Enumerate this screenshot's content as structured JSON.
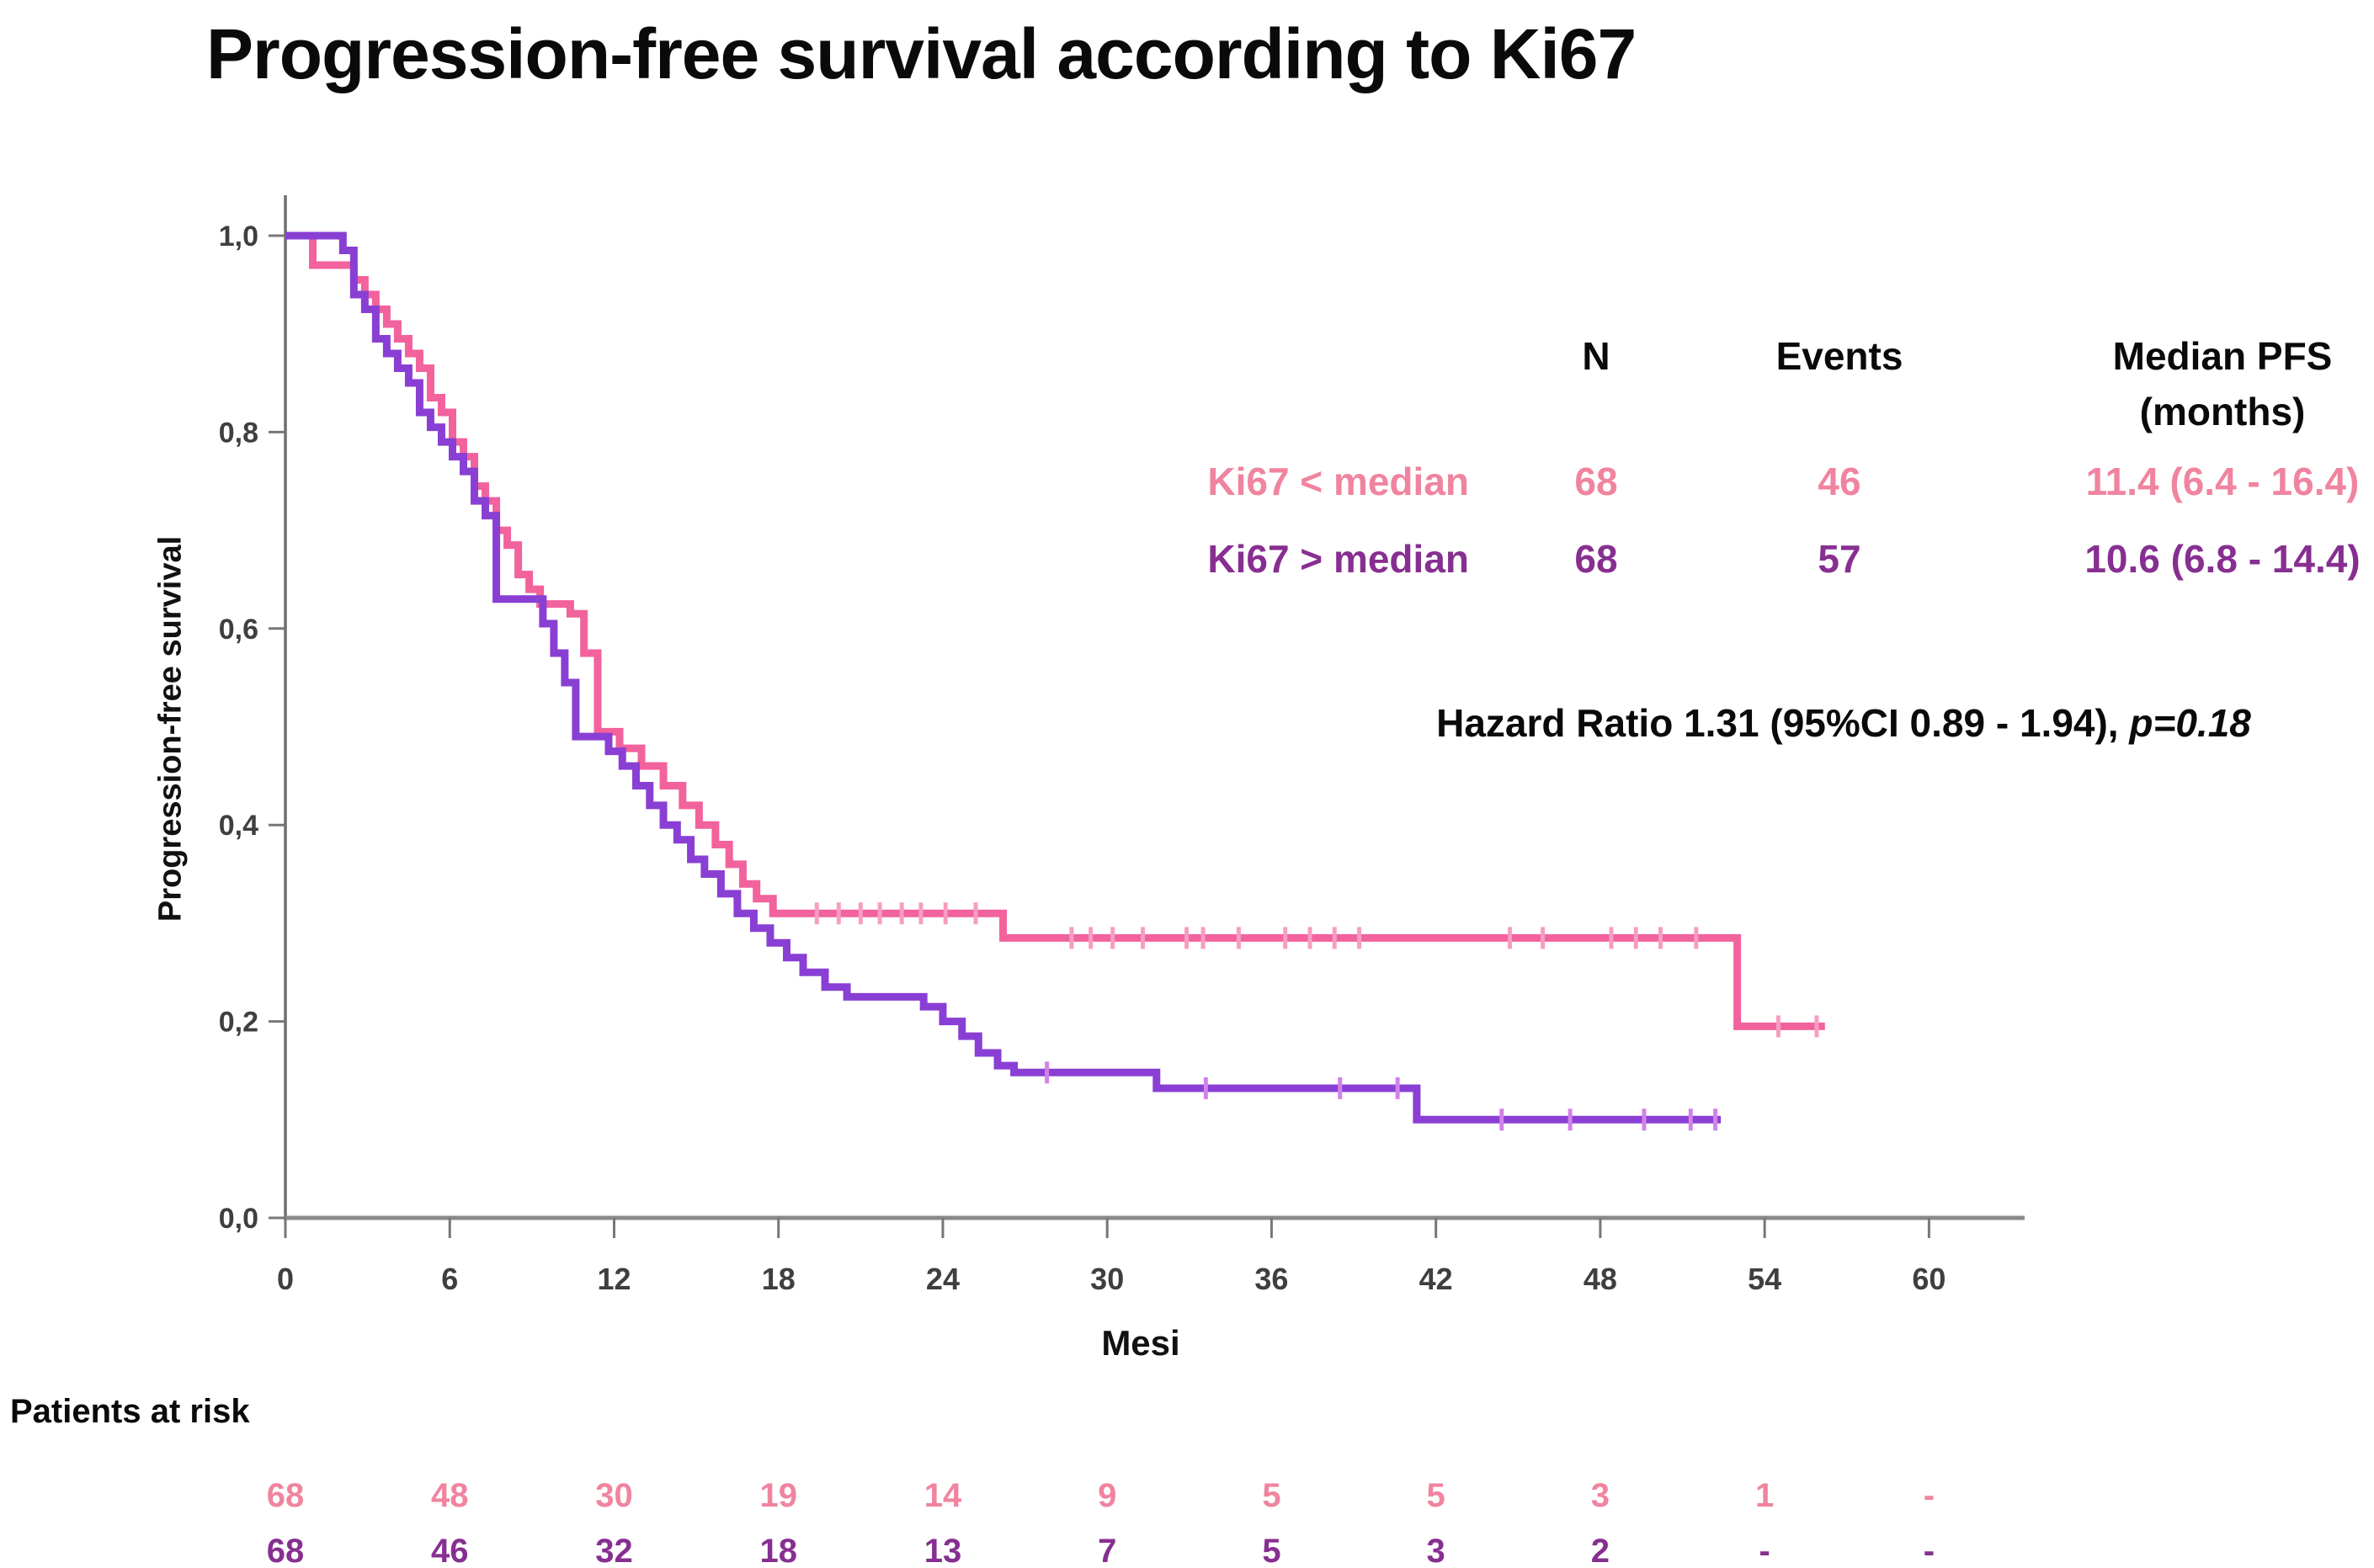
{
  "title": "Progression-free survival according to Ki67",
  "axes": {
    "x_label": "Mesi",
    "y_label": "Progression-free survival"
  },
  "colors": {
    "pink_curve": "#f2629c",
    "pink_text": "#f0849f",
    "pink_censor": "#f79ec0",
    "purple_curve": "#8a3fd4",
    "purple_text": "#872f91",
    "purple_censor": "#d183e8",
    "axis": "#8a8a8a",
    "tick_label": "#3f3f3f"
  },
  "legend_table": {
    "col_headers": {
      "n": "N",
      "events": "Events",
      "median_line1": "Median PFS",
      "median_line2": "(months)"
    },
    "rows": [
      {
        "label": "Ki67 < median",
        "n": "68",
        "events": "46",
        "median": "11.4 (6.4 - 16.4)"
      },
      {
        "label": "Ki67 > median",
        "n": "68",
        "events": "57",
        "median": "10.6 (6.8 - 14.4)"
      }
    ]
  },
  "hazard": {
    "text": "Hazard Ratio 1.31 (95%CI 0.89 - 1.94), ",
    "p": "p=0.18"
  },
  "patients_at_risk": {
    "label": "Patients at risk",
    "rows": [
      {
        "name": "Ki67 < median",
        "values": [
          "68",
          "48",
          "30",
          "19",
          "14",
          "9",
          "5",
          "5",
          "3",
          "1",
          "-"
        ]
      },
      {
        "name": "Ki67 > median",
        "values": [
          "68",
          "46",
          "32",
          "18",
          "13",
          "7",
          "5",
          "3",
          "2",
          "-",
          "-"
        ]
      }
    ]
  },
  "chart_data": {
    "type": "line",
    "subtype": "kaplan-meier-step",
    "title": "Progression-free survival according to Ki67",
    "xlabel": "Mesi",
    "ylabel": "Progression-free survival",
    "xlim": [
      0,
      63
    ],
    "ylim": [
      0.0,
      1.0
    ],
    "grid": false,
    "x_ticks": [
      {
        "v": 0,
        "label": "0"
      },
      {
        "v": 6,
        "label": "6"
      },
      {
        "v": 12,
        "label": "12"
      },
      {
        "v": 18,
        "label": "18"
      },
      {
        "v": 24,
        "label": "24"
      },
      {
        "v": 30,
        "label": "30"
      },
      {
        "v": 36,
        "label": "36"
      },
      {
        "v": 42,
        "label": "42"
      },
      {
        "v": 48,
        "label": "48"
      },
      {
        "v": 54,
        "label": "54"
      },
      {
        "v": 60,
        "label": "60"
      }
    ],
    "y_ticks": [
      {
        "v": 0.0,
        "label": "0,0"
      },
      {
        "v": 0.2,
        "label": "0,2"
      },
      {
        "v": 0.4,
        "label": "0,4"
      },
      {
        "v": 0.6,
        "label": "0,6"
      },
      {
        "v": 0.8,
        "label": "0,8"
      },
      {
        "v": 1.0,
        "label": "1,0"
      }
    ],
    "series": [
      {
        "name": "Ki67 < median",
        "n": 68,
        "events": 46,
        "median_pfs": "11.4 (6.4 - 16.4)",
        "color": "#f2629c",
        "censor_color": "#f79ec0",
        "steps": [
          [
            0,
            1.0
          ],
          [
            1.0,
            0.97
          ],
          [
            2.5,
            0.955
          ],
          [
            2.9,
            0.94
          ],
          [
            3.3,
            0.925
          ],
          [
            3.7,
            0.91
          ],
          [
            4.1,
            0.895
          ],
          [
            4.5,
            0.88
          ],
          [
            4.9,
            0.865
          ],
          [
            5.3,
            0.835
          ],
          [
            5.7,
            0.82
          ],
          [
            6.1,
            0.79
          ],
          [
            6.5,
            0.775
          ],
          [
            6.9,
            0.745
          ],
          [
            7.3,
            0.73
          ],
          [
            7.7,
            0.7
          ],
          [
            8.1,
            0.685
          ],
          [
            8.5,
            0.655
          ],
          [
            8.9,
            0.64
          ],
          [
            9.3,
            0.625
          ],
          [
            10.4,
            0.615
          ],
          [
            10.9,
            0.575
          ],
          [
            11.4,
            0.495
          ],
          [
            12.2,
            0.478
          ],
          [
            13.0,
            0.46
          ],
          [
            13.8,
            0.44
          ],
          [
            14.5,
            0.42
          ],
          [
            15.1,
            0.4
          ],
          [
            15.7,
            0.38
          ],
          [
            16.2,
            0.36
          ],
          [
            16.7,
            0.34
          ],
          [
            17.2,
            0.325
          ],
          [
            17.8,
            0.31
          ],
          [
            26.2,
            0.285
          ],
          [
            53.0,
            0.195
          ],
          [
            56.2,
            0.195
          ]
        ],
        "censors": [
          19.4,
          20.2,
          21.0,
          21.7,
          22.5,
          23.2,
          24.1,
          25.2,
          28.7,
          29.4,
          30.2,
          31.3,
          32.9,
          33.5,
          34.8,
          36.5,
          37.4,
          38.3,
          39.2,
          44.7,
          45.9,
          48.4,
          49.3,
          50.2,
          51.5,
          54.5,
          55.9
        ]
      },
      {
        "name": "Ki67 > median",
        "n": 68,
        "events": 57,
        "median_pfs": "10.6 (6.8 - 14.4)",
        "color": "#8a3fd4",
        "censor_color": "#d183e8",
        "steps": [
          [
            0,
            1.0
          ],
          [
            2.1,
            0.985
          ],
          [
            2.5,
            0.94
          ],
          [
            2.9,
            0.925
          ],
          [
            3.3,
            0.895
          ],
          [
            3.7,
            0.88
          ],
          [
            4.1,
            0.865
          ],
          [
            4.5,
            0.85
          ],
          [
            4.9,
            0.82
          ],
          [
            5.3,
            0.805
          ],
          [
            5.7,
            0.79
          ],
          [
            6.1,
            0.775
          ],
          [
            6.5,
            0.76
          ],
          [
            6.9,
            0.73
          ],
          [
            7.3,
            0.715
          ],
          [
            7.7,
            0.63
          ],
          [
            9.4,
            0.605
          ],
          [
            9.8,
            0.575
          ],
          [
            10.2,
            0.545
          ],
          [
            10.6,
            0.49
          ],
          [
            11.8,
            0.475
          ],
          [
            12.3,
            0.46
          ],
          [
            12.8,
            0.44
          ],
          [
            13.3,
            0.42
          ],
          [
            13.8,
            0.4
          ],
          [
            14.3,
            0.385
          ],
          [
            14.8,
            0.365
          ],
          [
            15.3,
            0.35
          ],
          [
            15.9,
            0.33
          ],
          [
            16.5,
            0.31
          ],
          [
            17.1,
            0.295
          ],
          [
            17.7,
            0.28
          ],
          [
            18.3,
            0.265
          ],
          [
            18.9,
            0.25
          ],
          [
            19.7,
            0.235
          ],
          [
            20.5,
            0.225
          ],
          [
            23.3,
            0.215
          ],
          [
            24.0,
            0.2
          ],
          [
            24.7,
            0.185
          ],
          [
            25.3,
            0.168
          ],
          [
            26.0,
            0.155
          ],
          [
            26.6,
            0.148
          ],
          [
            31.8,
            0.132
          ],
          [
            41.3,
            0.1
          ],
          [
            52.4,
            0.1
          ]
        ],
        "censors": [
          27.8,
          33.6,
          38.5,
          40.6,
          44.4,
          46.9,
          49.6,
          51.3,
          52.2
        ]
      }
    ],
    "annotations": {
      "hazard_ratio": "Hazard Ratio 1.31 (95%CI 0.89 - 1.94), p=0.18"
    },
    "patients_at_risk": {
      "times": [
        0,
        6,
        12,
        18,
        24,
        30,
        36,
        42,
        48,
        54,
        60
      ],
      "rows": [
        {
          "name": "Ki67 < median",
          "values": [
            "68",
            "48",
            "30",
            "19",
            "14",
            "9",
            "5",
            "5",
            "3",
            "1",
            "-"
          ]
        },
        {
          "name": "Ki67 > median",
          "values": [
            "68",
            "46",
            "32",
            "18",
            "13",
            "7",
            "5",
            "3",
            "2",
            "-",
            "-"
          ]
        }
      ]
    }
  }
}
